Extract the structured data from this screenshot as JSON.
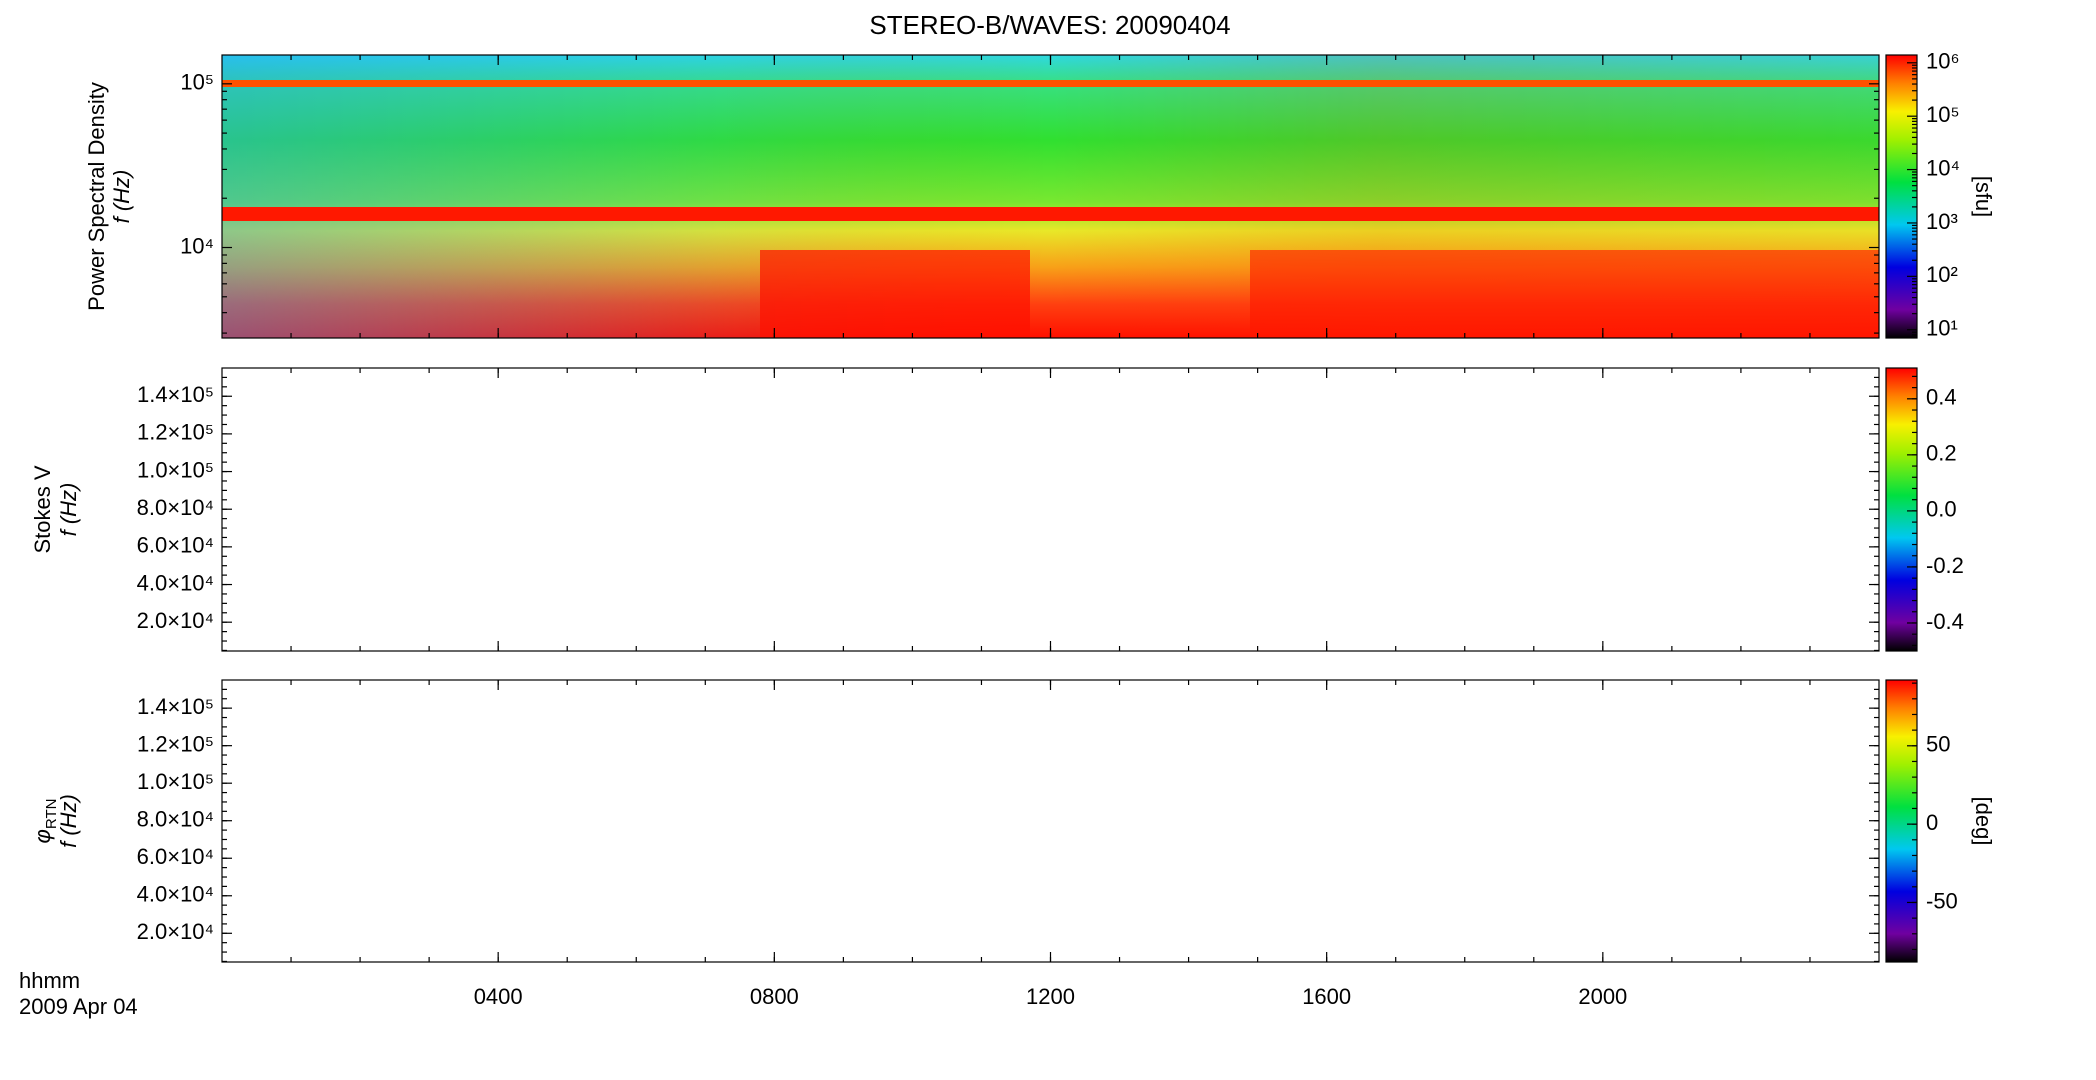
{
  "title": "STEREO-B/WAVES: 20090404",
  "time_axis": {
    "xlim": [
      0,
      24
    ],
    "xticks": [
      {
        "value": 4,
        "label": "0400"
      },
      {
        "value": 8,
        "label": "0800"
      },
      {
        "value": 12,
        "label": "1200"
      },
      {
        "value": 16,
        "label": "1600"
      },
      {
        "value": 20,
        "label": "2000"
      }
    ],
    "xlabel": [
      "hhmm",
      "2009 Apr 04"
    ]
  },
  "chart_data": [
    {
      "type": "spectrogram",
      "ylabel": [
        "Power Spectral Density",
        "f (Hz)"
      ],
      "ylog": true,
      "ylim": [
        2800,
        150000
      ],
      "yticks": [
        {
          "value": 10000,
          "label": "10⁴"
        },
        {
          "value": 100000,
          "label": "10⁵"
        }
      ],
      "colorbar": {
        "label": "[sfu]",
        "log": true,
        "lim": [
          7,
          1400000
        ],
        "ticks": [
          {
            "value": 10,
            "label": "10¹"
          },
          {
            "value": 100,
            "label": "10²"
          },
          {
            "value": 1000,
            "label": "10³"
          },
          {
            "value": 10000,
            "label": "10⁴"
          },
          {
            "value": 100000,
            "label": "10⁵"
          },
          {
            "value": 1000000,
            "label": "10⁶"
          }
        ]
      }
    },
    {
      "type": "spectrogram",
      "ylabel": [
        "Stokes V",
        "f (Hz)"
      ],
      "ylog": false,
      "ylim": [
        4700,
        155000
      ],
      "yticks": [
        {
          "value": 20000,
          "label": "2.0×10⁴"
        },
        {
          "value": 40000,
          "label": "4.0×10⁴"
        },
        {
          "value": 60000,
          "label": "6.0×10⁴"
        },
        {
          "value": 80000,
          "label": "8.0×10⁴"
        },
        {
          "value": 100000,
          "label": "1.0×10⁵"
        },
        {
          "value": 120000,
          "label": "1.2×10⁵"
        },
        {
          "value": 140000,
          "label": "1.4×10⁵"
        }
      ],
      "colorbar": {
        "log": false,
        "lim": [
          -0.5,
          0.51
        ],
        "ticks": [
          {
            "value": -0.4,
            "label": "-0.4"
          },
          {
            "value": -0.2,
            "label": "-0.2"
          },
          {
            "value": 0,
            "label": "0.0"
          },
          {
            "value": 0.2,
            "label": "0.2"
          },
          {
            "value": 0.4,
            "label": "0.4"
          }
        ]
      }
    },
    {
      "type": "spectrogram",
      "ylabel": [
        "φ",
        "f (Hz)"
      ],
      "ylabel_subscript": "RTN",
      "ylog": false,
      "ylim": [
        4700,
        155000
      ],
      "yticks": [
        {
          "value": 20000,
          "label": "2.0×10⁴"
        },
        {
          "value": 40000,
          "label": "4.0×10⁴"
        },
        {
          "value": 60000,
          "label": "6.0×10⁴"
        },
        {
          "value": 80000,
          "label": "8.0×10⁴"
        },
        {
          "value": 100000,
          "label": "1.0×10⁵"
        },
        {
          "value": 120000,
          "label": "1.2×10⁵"
        },
        {
          "value": 140000,
          "label": "1.4×10⁵"
        }
      ],
      "colorbar": {
        "label": "[deg]",
        "log": false,
        "lim": [
          -88,
          92
        ],
        "ticks": [
          -50,
          0,
          50
        ]
      }
    }
  ]
}
